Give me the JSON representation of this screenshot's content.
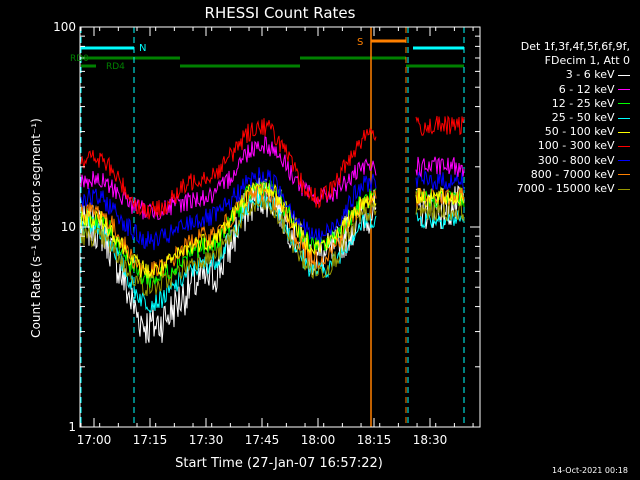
{
  "chart_data": {
    "type": "line",
    "title": "RHESSI Count Rates",
    "xlabel": "Start Time (27-Jan-07 16:57:22)",
    "ylabel": "Count Rate (s⁻¹ detector segment⁻¹)",
    "yscale": "log",
    "ylim": [
      1,
      100
    ],
    "xlim_min": [
      16.92,
      18.97
    ],
    "xticks": [
      "17:00",
      "17:15",
      "17:30",
      "17:45",
      "18:00",
      "18:15",
      "18:30"
    ],
    "yticks": [
      "1",
      "10",
      "100"
    ],
    "legend_header": [
      "Det 1f,3f,4f,5f,6f,9f,",
      "FDecim 1, Att 0"
    ],
    "legend_position": "right",
    "series": [
      {
        "name": "3 - 6 keV",
        "color": "#ffffff",
        "min_value": 2.9,
        "peak": 14.5,
        "values_at_ticks": [
          10,
          3.2,
          5.5,
          14.5,
          7,
          12,
          12.5
        ]
      },
      {
        "name": "6 - 12 keV",
        "color": "#ff00ff",
        "values_at_ticks": [
          17,
          12,
          14,
          26,
          14,
          20,
          20
        ]
      },
      {
        "name": "12 - 25 keV",
        "color": "#00ff00",
        "values_at_ticks": [
          11,
          5.5,
          8,
          16,
          8,
          14,
          14
        ]
      },
      {
        "name": "25 - 50 keV",
        "color": "#00ffff",
        "values_at_ticks": [
          10,
          4.2,
          6.5,
          14,
          6,
          11,
          11
        ]
      },
      {
        "name": "50 - 100 keV",
        "color": "#ffff00",
        "values_at_ticks": [
          11,
          6,
          8.5,
          16,
          8,
          14,
          14
        ]
      },
      {
        "name": "100 - 300 keV",
        "color": "#ff0000",
        "values_at_ticks": [
          22,
          12,
          18,
          32,
          14,
          30,
          32
        ]
      },
      {
        "name": "300 - 800 keV",
        "color": "#0000ff",
        "values_at_ticks": [
          14,
          8.5,
          11,
          18,
          9,
          17,
          17
        ]
      },
      {
        "name": "800 - 7000 keV",
        "color": "#ff8000",
        "values_at_ticks": [
          12,
          6,
          9,
          15,
          7,
          14,
          14
        ]
      },
      {
        "name": "7000 - 15000 keV",
        "color": "#999900",
        "values_at_ticks": [
          9,
          5,
          7,
          13,
          6,
          12,
          12
        ]
      }
    ],
    "annotations": {
      "attenuator_labels": [
        "RD0",
        "RD4"
      ],
      "night_label": "N",
      "saa_label": "S",
      "bar_colors": {
        "night": "#00ffff",
        "decimation": "#008000",
        "saa": "#ff8000"
      }
    }
  },
  "footer": {
    "timestamp": "14-Oct-2021 00:18"
  }
}
